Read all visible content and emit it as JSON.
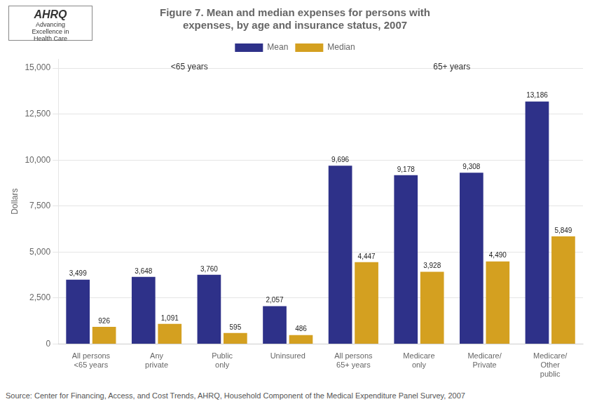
{
  "chart_data": {
    "type": "bar",
    "title": "Figure 7. Mean and median expenses for persons with\nexpenses, by age and insurance status, 2007",
    "categories": [
      "All persons\n<65 years",
      "Any\nprivate",
      "Public\nonly",
      "Uninsured",
      "All persons\n65+ years",
      "Medicare\nonly",
      "Medicare/\nPrivate",
      "Medicare/\nOther\npublic"
    ],
    "series": [
      {
        "name": "Mean",
        "color": "#2E3189",
        "values": [
          3499,
          3648,
          3760,
          2057,
          9696,
          9178,
          9308,
          13186
        ],
        "value_labels": [
          "3,499",
          "3,648",
          "3,760",
          "2,057",
          "9,696",
          "9,178",
          "9,308",
          "13,186"
        ]
      },
      {
        "name": "Median",
        "color": "#D4A020",
        "values": [
          926,
          1091,
          595,
          486,
          4447,
          3928,
          4490,
          5849
        ],
        "value_labels": [
          "926",
          "1,091",
          "595",
          "486",
          "4,447",
          "3,928",
          "4,490",
          "5,849"
        ]
      }
    ],
    "ylabel": "Dollars",
    "ylim": [
      0,
      15500
    ],
    "yticks": [
      0,
      {
        "value": 2500,
        "label": "2,500"
      },
      {
        "value": 5000,
        "label": "5,000"
      },
      {
        "value": 7500,
        "label": "7,500"
      },
      {
        "value": 10000,
        "label": "10,000"
      },
      {
        "value": 12500,
        "label": "12,500"
      },
      {
        "value": 15000,
        "label": "15,000"
      }
    ],
    "grid": true,
    "legend": "upper center",
    "data_labels": true,
    "group_labels": [
      "<65 years",
      "65+ years"
    ],
    "annotations": [
      "AHRQ",
      "Advancing\nExcellence in\nHealth Care"
    ],
    "source": "Source: Center for Financing, Access, and Cost Trends, AHRQ, Household Component of the Medical Expenditure Panel Survey, 2007"
  }
}
